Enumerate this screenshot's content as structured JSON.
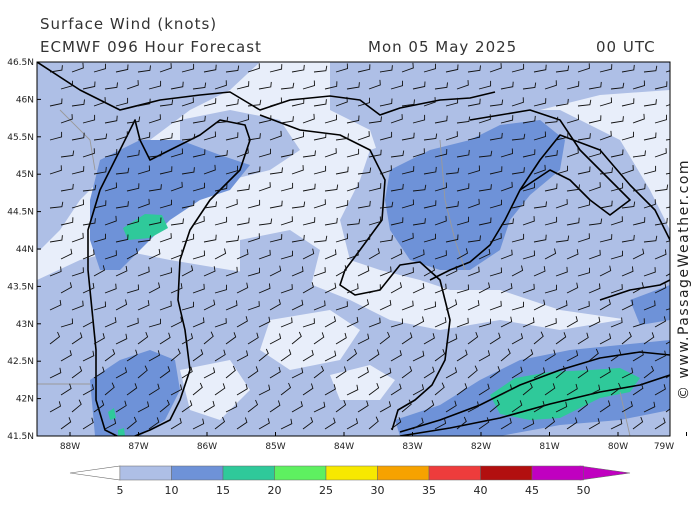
{
  "header": {
    "title": "Surface Wind (knots)",
    "model": "ECMWF 096 Hour Forecast",
    "date": "Mon 05 May 2025",
    "time": "00 UTC"
  },
  "credit": "© www.PassageWeather.com",
  "axes": {
    "lat_labels": [
      "46.5N",
      "46N",
      "45.5N",
      "45N",
      "44.5N",
      "44N",
      "43.5N",
      "43N",
      "42.5N",
      "42N",
      "41.5N"
    ],
    "lon_labels": [
      "88W",
      "87W",
      "86W",
      "85W",
      "84W",
      "83W",
      "82W",
      "81W",
      "80W",
      "79W"
    ]
  },
  "legend": {
    "labels": [
      "5",
      "10",
      "15",
      "20",
      "25",
      "30",
      "35",
      "40",
      "45",
      "50"
    ],
    "colors": [
      "#e8eefa",
      "#aebfe6",
      "#6e92d8",
      "#2fc99a",
      "#5ef060",
      "#f7e800",
      "#f6a200",
      "#ee3c3c",
      "#b20f0f",
      "#c000c0"
    ]
  }
}
